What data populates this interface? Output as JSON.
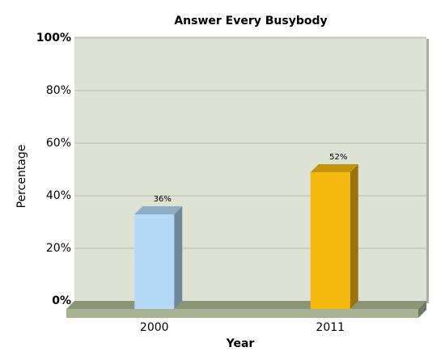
{
  "chart_data": {
    "type": "bar3d",
    "title": "Answer Every Busybody",
    "categories": [
      "2000",
      "2011"
    ],
    "values": [
      36,
      52
    ],
    "value_labels": [
      "36%",
      "52%"
    ],
    "colors": [
      "#b3d9f7",
      "#f5b90f"
    ],
    "x_label": "Year",
    "y_label": "Percentage",
    "ylim": [
      0,
      100
    ],
    "yticks": [
      {
        "value": 0,
        "label": "0%"
      },
      {
        "value": 20,
        "label": "20%"
      },
      {
        "value": 40,
        "label": "40%"
      },
      {
        "value": 60,
        "label": "60%"
      },
      {
        "value": 80,
        "label": "80%"
      },
      {
        "value": 100,
        "label": "100%"
      }
    ],
    "grid": true
  }
}
